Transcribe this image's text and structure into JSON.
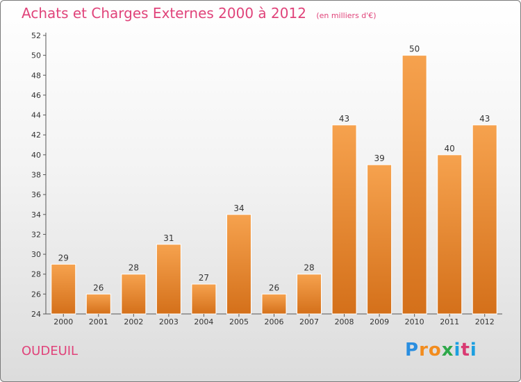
{
  "header": {
    "title": "Achats et Charges Externes 2000 à 2012",
    "subtitle": "(en milliers d'€)"
  },
  "footer": {
    "commune": "OUDEUIL"
  },
  "logo": {
    "letters": [
      "P",
      "r",
      "o",
      "x",
      "i",
      "t",
      "i"
    ],
    "colors": [
      "#2a8ee0",
      "#f28c1e",
      "#f28c1e",
      "#2ea84a",
      "#1c9fe0",
      "#d93a72",
      "#1c9fe0"
    ]
  },
  "colors": {
    "bar_top": "#f6a24e",
    "bar_bottom": "#d4701a",
    "title": "#e0437a"
  },
  "chart_data": {
    "type": "bar",
    "title": "Achats et Charges Externes 2000 à 2012",
    "subtitle": "(en milliers d'€)",
    "categories": [
      "2000",
      "2001",
      "2002",
      "2003",
      "2004",
      "2005",
      "2006",
      "2007",
      "2008",
      "2009",
      "2010",
      "2011",
      "2012"
    ],
    "values": [
      29,
      26,
      28,
      31,
      27,
      34,
      26,
      28,
      43,
      39,
      50,
      40,
      43
    ],
    "ylim": [
      24,
      52
    ],
    "yticks": [
      24,
      26,
      28,
      30,
      32,
      34,
      36,
      38,
      40,
      42,
      44,
      46,
      48,
      50,
      52
    ],
    "grid": false,
    "data_labels": true
  }
}
